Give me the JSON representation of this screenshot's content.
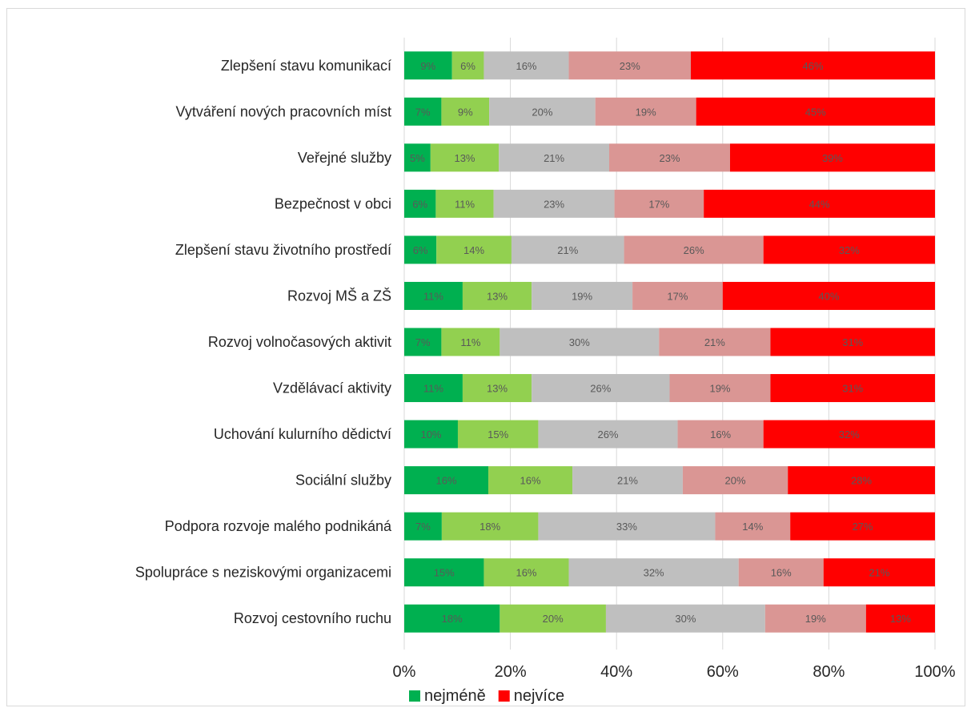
{
  "chart_data": {
    "type": "bar",
    "orientation": "horizontal",
    "stacked": "percent",
    "categories": [
      "Zlepšení stavu komunikací",
      "Vytváření nových pracovních míst",
      "Veřejné služby",
      "Bezpečnost v obci",
      "Zlepšení stavu životního prostředí",
      "Rozvoj MŠ a ZŠ",
      "Rozvoj volnočasových aktivit",
      "Vzdělávací aktivity",
      "Uchování kulurního dědictví",
      "Sociální služby",
      "Podpora rozvoje malého podnikáná",
      "Spolupráce s neziskovými organizacemi",
      "Rozvoj cestovního ruchu"
    ],
    "series": [
      {
        "name": "nejméně",
        "color": "#00b050",
        "values": [
          9,
          7,
          5,
          6,
          6,
          11,
          7,
          11,
          10,
          16,
          7,
          15,
          18
        ]
      },
      {
        "color": "#92d050",
        "values": [
          6,
          9,
          13,
          11,
          14,
          13,
          11,
          13,
          15,
          16,
          18,
          16,
          20
        ]
      },
      {
        "color": "#bfbfbf",
        "values": [
          16,
          20,
          21,
          23,
          21,
          19,
          30,
          26,
          26,
          21,
          33,
          32,
          30
        ]
      },
      {
        "color": "#da9694",
        "values": [
          23,
          19,
          23,
          17,
          26,
          17,
          21,
          19,
          16,
          20,
          14,
          16,
          19
        ]
      },
      {
        "name": "nejvíce",
        "color": "#ff0000",
        "values": [
          46,
          45,
          39,
          44,
          32,
          40,
          31,
          31,
          32,
          28,
          27,
          21,
          13
        ]
      }
    ],
    "data_labels": [
      [
        "9%",
        "6%",
        "16%",
        "23%",
        "46%"
      ],
      [
        "7%",
        "9%",
        "20%",
        "19%",
        "45%"
      ],
      [
        "5%",
        "13%",
        "21%",
        "23%",
        "39%"
      ],
      [
        "6%",
        "11%",
        "23%",
        "17%",
        "44%"
      ],
      [
        "6%",
        "14%",
        "21%",
        "26%",
        "32%"
      ],
      [
        "11%",
        "13%",
        "19%",
        "17%",
        "40%"
      ],
      [
        "7%",
        "11%",
        "30%",
        "21%",
        "31%"
      ],
      [
        "11%",
        "13%",
        "26%",
        "19%",
        "31%"
      ],
      [
        "10%",
        "15%",
        "26%",
        "16%",
        "32%"
      ],
      [
        "16%",
        "16%",
        "21%",
        "20%",
        "28%"
      ],
      [
        "7%",
        "18%",
        "33%",
        "14%",
        "27%"
      ],
      [
        "15%",
        "16%",
        "32%",
        "16%",
        "21%"
      ],
      [
        "18%",
        "20%",
        "30%",
        "19%",
        "13%"
      ]
    ],
    "x_ticks": [
      "0%",
      "20%",
      "40%",
      "60%",
      "80%",
      "100%"
    ],
    "xlim": [
      0,
      100
    ],
    "grid": true,
    "legend": {
      "position": "bottom",
      "items": [
        {
          "label": "nejméně",
          "color": "#00b050"
        },
        {
          "label": "nejvíce",
          "color": "#ff0000"
        }
      ]
    }
  }
}
